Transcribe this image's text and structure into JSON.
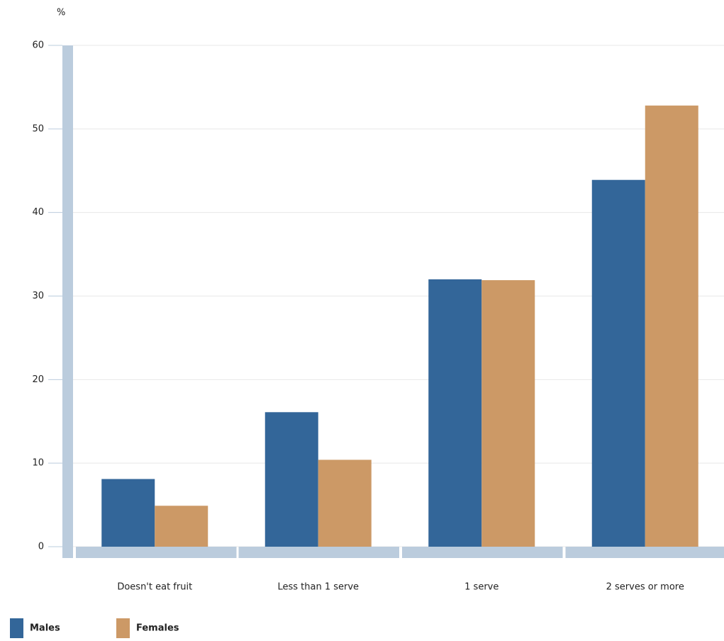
{
  "chart_data": {
    "type": "bar",
    "y_label": "%",
    "categories": [
      "Doesn't eat fruit",
      "Less than 1 serve",
      "1 serve",
      "2 serves or more"
    ],
    "series": [
      {
        "name": "Males",
        "color": "#336699",
        "values": [
          8.1,
          16.1,
          32.0,
          43.9
        ]
      },
      {
        "name": "Females",
        "color": "#cc9966",
        "values": [
          4.9,
          10.4,
          31.9,
          52.8
        ]
      }
    ],
    "ylim": [
      0,
      60
    ],
    "yticks": [
      0,
      10,
      20,
      30,
      40,
      50,
      60
    ],
    "grid": true,
    "legend": "bottom-left"
  }
}
